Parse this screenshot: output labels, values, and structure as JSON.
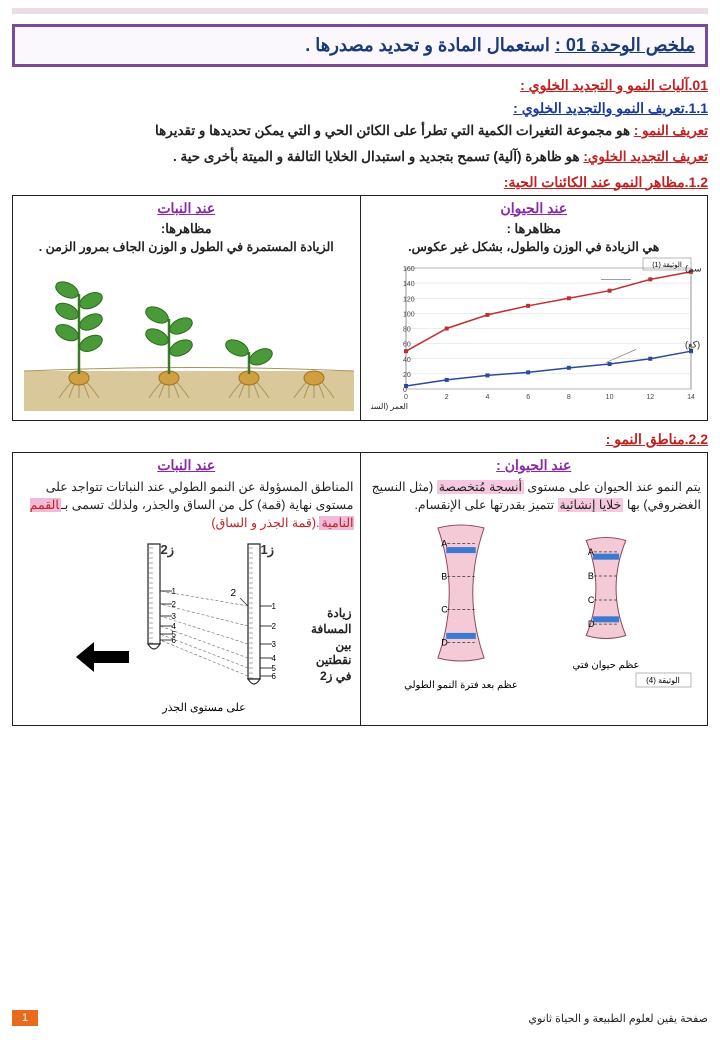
{
  "title_prefix": "ملخص الوحدة 01 :",
  "title_rest": " استعمال المادة و تحديد مصدرها .",
  "h1": "01.آليات النمو و التجديد الخلوي :",
  "h11": "1.1.تعريف النمو والتجديد الخلوي :",
  "def_growth_lead": "تعريف النمو :",
  "def_growth_body": " هو مجموعة التغيرات الكمية التي تطرأ على الكائن الحي و التي يمكن تحديدها و تقديرها",
  "def_renew_lead": "تعريف التجديد الخلوي:",
  "def_renew_body": " هو ظاهرة (آلية) تسمح بتجديد و استبدال الخلايا التالفة و الميتة بأخرى حية .",
  "h12": "1.2.مظاهر النمو عند الكائنات الحية:",
  "t1": {
    "animal_head": "عند الحيوان",
    "animal_sub": "مظاهرها :",
    "animal_body": "هي الزيادة في الوزن والطول، بشكل غير عكوس.",
    "plant_head": "عند النبات",
    "plant_sub": "مظاهرها:",
    "plant_body": "الزيادة المستمرة في الطول و الوزن الجاف بمرور الزمن .",
    "chart": {
      "doc_label": "الوثيقة (1)",
      "series1_label": "الطول (سم)",
      "series2_label": "الوزن (كغ)",
      "xlabel": "العمر (السنوات)",
      "xlim": [
        0,
        14
      ],
      "ylim": [
        0,
        160
      ],
      "ytick_step": 20,
      "x": [
        0,
        2,
        4,
        6,
        8,
        10,
        12,
        14
      ],
      "height_cm": [
        50,
        80,
        98,
        110,
        120,
        130,
        145,
        155
      ],
      "weight_kg": [
        4,
        12,
        18,
        22,
        28,
        33,
        40,
        50
      ],
      "color_height": "#c03030",
      "color_weight": "#2a4a9a",
      "background": "#ffffff",
      "grid_color": "#d8d8d8"
    }
  },
  "h22": "2.2.مناطق النمو :",
  "t2": {
    "animal_head": "عند الحيوان :",
    "plant_head": "عند النبات",
    "animal_para_1": "يتم النمو عند الحيوان على مستوى ",
    "animal_hl1": "أنسجة مُتخصصة",
    "animal_para_2": " (مثل النسيج الغضروفي) بها ",
    "animal_hl2": "خلايا إنشائية",
    "animal_para_3": " تتميز بقدرتها على الإنقسام.",
    "plant_para_1": "المناطق المسؤولة عن النمو الطولي عند النباتات تتواجد على مستوى نهاية (قمة) كل من الساق والجذر، ولذلك تسمى بـ",
    "plant_hl1": "القمم النامية",
    "plant_para_2": ".(قمة الجذر و الساق)",
    "bone_young": "عظم حيوان فتي",
    "bone_adult": "عظم بعد فترة النمو الطولي",
    "doc4": "الوثيقة (4)",
    "arrow_text": "زيادة المسافة بين نقطتين في ز2",
    "z1": "ز1",
    "z2": "ز2",
    "root_caption": "على مستوى الجذر",
    "bone_colors": {
      "fill": "#f4cad6",
      "line": "#8a4a60",
      "cartilage": "#3a7ad0"
    }
  },
  "footer_text": "صفحة يقين لعلوم الطبيعة و الحياة ثانوي",
  "page_number": "1"
}
